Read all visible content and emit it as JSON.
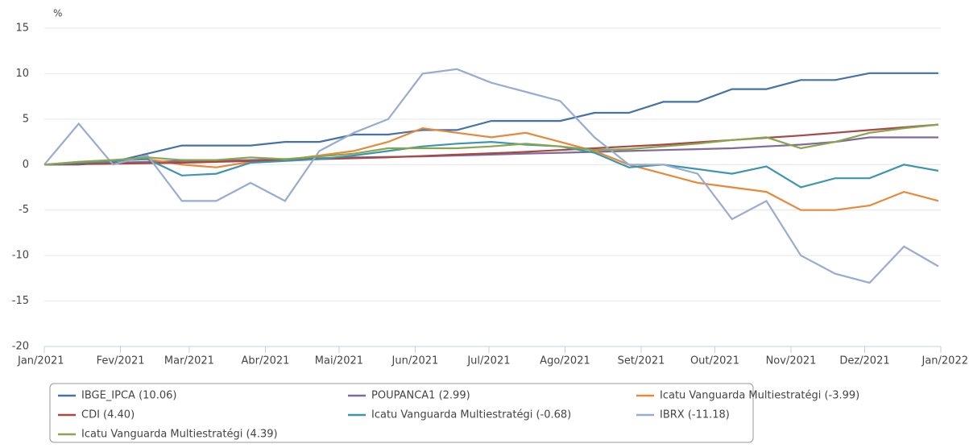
{
  "chart_data": {
    "type": "line",
    "y_axis_title": "%",
    "x": [
      0,
      14,
      28,
      42,
      56,
      70,
      84,
      98,
      112,
      126,
      140,
      154,
      168,
      182,
      196,
      210,
      224,
      238,
      252,
      266,
      280,
      294,
      308,
      322,
      336,
      350,
      364
    ],
    "xlim": [
      0,
      365
    ],
    "xticks": [
      {
        "value": 0,
        "label": "Jan/2021"
      },
      {
        "value": 31,
        "label": "Fev/2021"
      },
      {
        "value": 59,
        "label": "Mar/2021"
      },
      {
        "value": 90,
        "label": "Abr/2021"
      },
      {
        "value": 120,
        "label": "Mai/2021"
      },
      {
        "value": 151,
        "label": "Jun/2021"
      },
      {
        "value": 181,
        "label": "Jul/2021"
      },
      {
        "value": 212,
        "label": "Ago/2021"
      },
      {
        "value": 243,
        "label": "Set/2021"
      },
      {
        "value": 273,
        "label": "Out/2021"
      },
      {
        "value": 304,
        "label": "Nov/2021"
      },
      {
        "value": 334,
        "label": "Dez/2021"
      },
      {
        "value": 365,
        "label": "Jan/2022"
      }
    ],
    "ylim": [
      -20,
      15
    ],
    "yticks": [
      15,
      10,
      5,
      0,
      -5,
      -10,
      -15,
      -20
    ],
    "grid": true,
    "series": [
      {
        "name": "IBGE_IPCA (10.06)",
        "color": "#4572a7",
        "values": [
          0,
          0,
          0.3,
          1.2,
          2.1,
          2.1,
          2.1,
          2.5,
          2.5,
          3.3,
          3.3,
          3.8,
          3.8,
          4.8,
          4.8,
          4.8,
          5.7,
          5.7,
          6.9,
          6.9,
          8.3,
          8.3,
          9.3,
          9.3,
          10.06,
          10.06,
          10.06
        ]
      },
      {
        "name": "POUPANCA1 (2.99)",
        "color": "#80699b",
        "values": [
          0,
          0.1,
          0.2,
          0.3,
          0.4,
          0.45,
          0.5,
          0.6,
          0.7,
          0.8,
          0.85,
          0.9,
          1.0,
          1.1,
          1.2,
          1.3,
          1.4,
          1.5,
          1.6,
          1.7,
          1.8,
          2.0,
          2.2,
          2.5,
          2.99,
          2.99,
          2.99
        ]
      },
      {
        "name": "Icatu Vanguarda Multiestratégi (-3.99)",
        "color": "#e8883a",
        "values": [
          0,
          0.3,
          0.5,
          0.6,
          0,
          -0.3,
          0.3,
          0.5,
          1.0,
          1.5,
          2.5,
          4.0,
          3.5,
          3.0,
          3.5,
          2.5,
          1.5,
          0,
          -1,
          -2,
          -2.5,
          -3,
          -5,
          -5,
          -4.5,
          -3,
          -3.99
        ]
      },
      {
        "name": "CDI (4.40)",
        "color": "#aa4643",
        "values": [
          0,
          0.05,
          0.1,
          0.15,
          0.2,
          0.3,
          0.4,
          0.5,
          0.6,
          0.7,
          0.8,
          0.95,
          1.1,
          1.25,
          1.4,
          1.6,
          1.8,
          2.0,
          2.2,
          2.45,
          2.7,
          2.95,
          3.2,
          3.5,
          3.8,
          4.1,
          4.4
        ]
      },
      {
        "name": "Icatu Vanguarda Multiestratégi (-0.68)",
        "color": "#3d96ae",
        "values": [
          0,
          0.2,
          0.4,
          0.6,
          -1.2,
          -1.0,
          0.2,
          0.4,
          0.6,
          1.0,
          1.5,
          2.0,
          2.3,
          2.5,
          2.2,
          2.0,
          1.3,
          -0.3,
          0,
          -0.5,
          -1.0,
          -0.2,
          -2.5,
          -1.5,
          -1.5,
          0,
          -0.68
        ]
      },
      {
        "name": "IBRX (-11.18)",
        "color": "#98acd1",
        "values": [
          0,
          4.5,
          0,
          1.0,
          -4,
          -4,
          -2,
          -4,
          1.5,
          3.5,
          5,
          10,
          10.5,
          9,
          8,
          7,
          3,
          0,
          0,
          -1,
          -6,
          -4,
          -10,
          -12,
          -13,
          -9,
          -11.18
        ]
      },
      {
        "name": "Icatu Vanguarda Multiestratégi (4.39)",
        "color": "#89a54e",
        "values": [
          0,
          0.3,
          0.5,
          0.8,
          0.5,
          0.5,
          0.8,
          0.6,
          0.9,
          1.2,
          1.8,
          1.8,
          1.8,
          2.0,
          2.3,
          2.0,
          1.6,
          1.7,
          2.0,
          2.3,
          2.7,
          3.0,
          1.8,
          2.5,
          3.5,
          4.0,
          4.39
        ]
      }
    ]
  }
}
